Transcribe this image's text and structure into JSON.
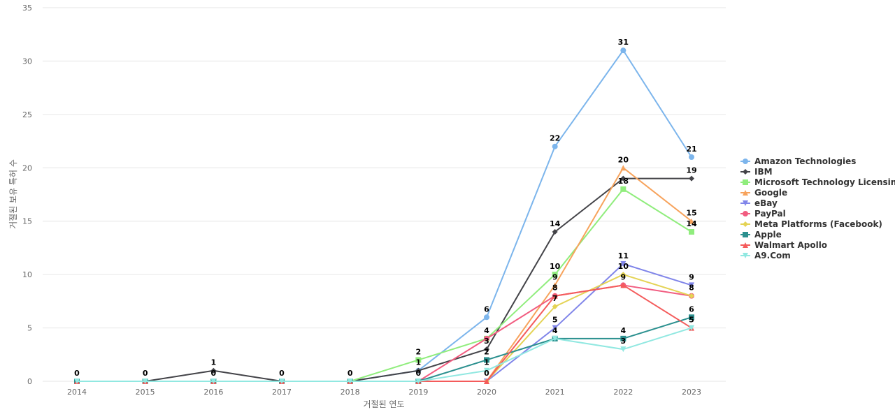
{
  "chart_data": {
    "type": "line",
    "title": "",
    "xlabel": "거절된 연도",
    "ylabel": "거절된 보유 특허 수",
    "x": [
      "2014",
      "2015",
      "2016",
      "2017",
      "2018",
      "2019",
      "2020",
      "2021",
      "2022",
      "2023"
    ],
    "ylim": [
      0,
      35
    ],
    "yticks": [
      0,
      5,
      10,
      15,
      20,
      25,
      30,
      35
    ],
    "grid": true,
    "legend": "right",
    "series": [
      {
        "name": "Amazon Technologies",
        "color": "#7cb5ec",
        "marker": "circle",
        "values": [
          0,
          0,
          0,
          0,
          0,
          1,
          6,
          22,
          31,
          21
        ],
        "labels": [
          0,
          0,
          0,
          0,
          0,
          1,
          6,
          22,
          31,
          21
        ]
      },
      {
        "name": "IBM",
        "color": "#434348",
        "marker": "diamond",
        "values": [
          0,
          0,
          1,
          0,
          0,
          1,
          3,
          14,
          19,
          19
        ],
        "labels": [
          null,
          null,
          1,
          null,
          null,
          null,
          3,
          14,
          null,
          19
        ]
      },
      {
        "name": "Microsoft Technology Licensing",
        "color": "#90ed7d",
        "marker": "square",
        "values": [
          0,
          0,
          0,
          0,
          0,
          2,
          4,
          10,
          18,
          14
        ],
        "labels": [
          null,
          null,
          null,
          null,
          null,
          2,
          null,
          10,
          18,
          14
        ]
      },
      {
        "name": "Google",
        "color": "#f7a35c",
        "marker": "triangle",
        "values": [
          0,
          0,
          0,
          0,
          0,
          0,
          0,
          9,
          20,
          15
        ],
        "labels": [
          null,
          null,
          null,
          null,
          null,
          null,
          null,
          9,
          20,
          15
        ]
      },
      {
        "name": "eBay",
        "color": "#8085e9",
        "marker": "triangle-down",
        "values": [
          0,
          0,
          0,
          0,
          0,
          0,
          0,
          5,
          11,
          9
        ],
        "labels": [
          null,
          null,
          null,
          null,
          null,
          null,
          null,
          5,
          11,
          9
        ]
      },
      {
        "name": "PayPal",
        "color": "#f15c80",
        "marker": "circle",
        "values": [
          0,
          0,
          0,
          0,
          0,
          0,
          4,
          8,
          9,
          8
        ],
        "labels": [
          null,
          null,
          null,
          null,
          null,
          null,
          4,
          8,
          9,
          8
        ]
      },
      {
        "name": "Meta Platforms (Facebook)",
        "color": "#e4d354",
        "marker": "diamond",
        "values": [
          0,
          0,
          0,
          0,
          0,
          0,
          0,
          7,
          10,
          8
        ],
        "labels": [
          null,
          null,
          null,
          null,
          null,
          null,
          null,
          7,
          10,
          null
        ]
      },
      {
        "name": "Apple",
        "color": "#2b908f",
        "marker": "square",
        "values": [
          0,
          0,
          0,
          0,
          0,
          0,
          2,
          4,
          4,
          6
        ],
        "labels": [
          null,
          null,
          null,
          null,
          null,
          null,
          2,
          4,
          4,
          6
        ]
      },
      {
        "name": "Walmart Apollo",
        "color": "#f45b5b",
        "marker": "triangle",
        "values": [
          0,
          0,
          0,
          0,
          0,
          0,
          0,
          8,
          9,
          5
        ],
        "labels": [
          null,
          null,
          null,
          null,
          null,
          null,
          0,
          null,
          null,
          5
        ]
      },
      {
        "name": "A9.Com",
        "color": "#91e8e1",
        "marker": "triangle-down",
        "values": [
          0,
          0,
          0,
          0,
          0,
          0,
          1,
          4,
          3,
          5
        ],
        "labels": [
          null,
          null,
          null,
          null,
          null,
          0,
          1,
          null,
          3,
          null
        ]
      }
    ]
  }
}
